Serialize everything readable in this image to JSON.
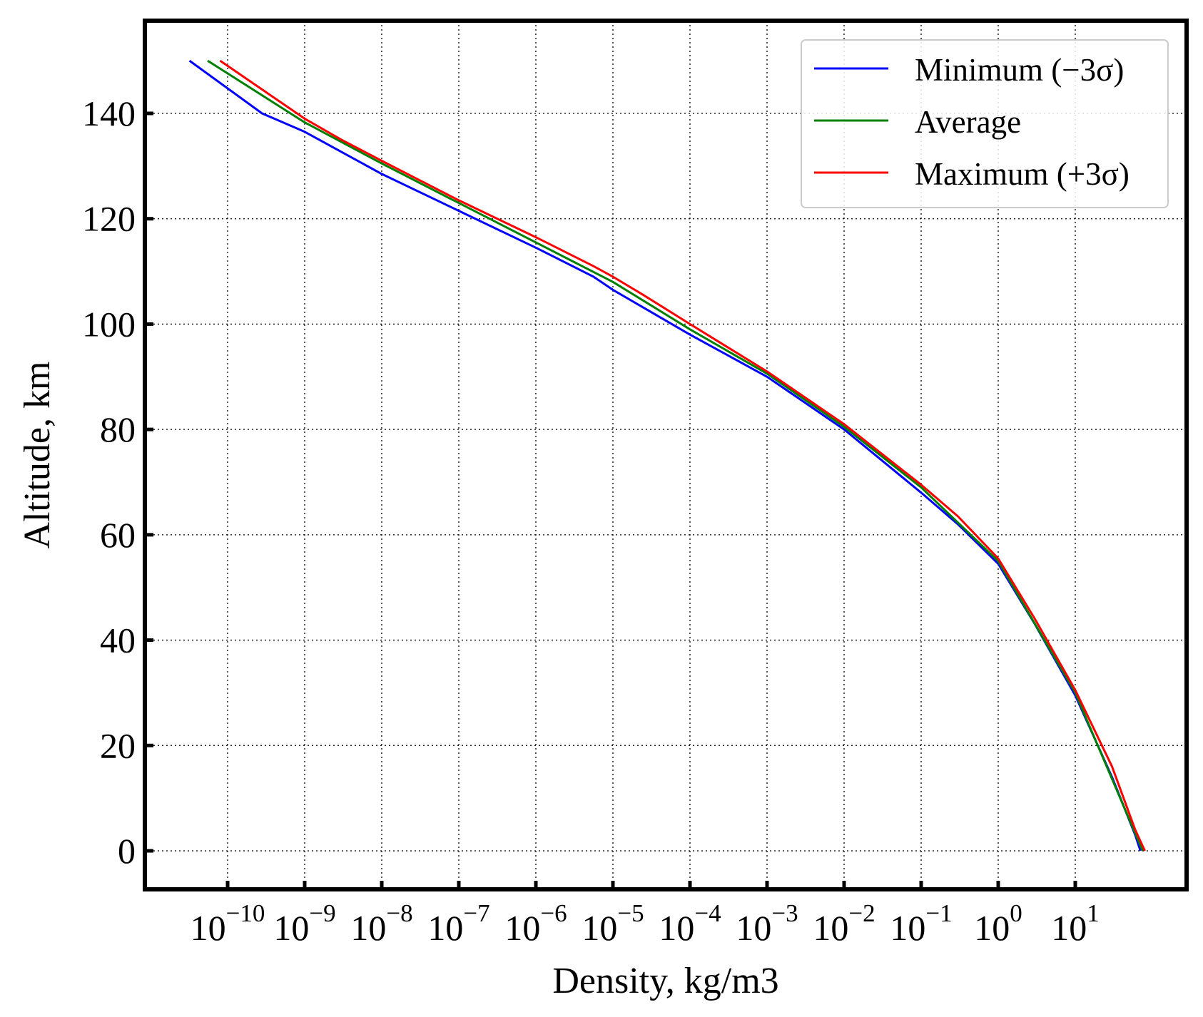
{
  "chart_data": {
    "type": "line",
    "title": "",
    "xlabel": "Density, kg/m3",
    "ylabel": "Altitude, km",
    "x_scale": "log",
    "xlim": [
      1e-11,
      1000.0
    ],
    "ylim": [
      -7,
      158
    ],
    "x_tick_labels": [
      {
        "base": "10",
        "exp": "−10"
      },
      {
        "base": "10",
        "exp": "−9"
      },
      {
        "base": "10",
        "exp": "−8"
      },
      {
        "base": "10",
        "exp": "−7"
      },
      {
        "base": "10",
        "exp": "−6"
      },
      {
        "base": "10",
        "exp": "−5"
      },
      {
        "base": "10",
        "exp": "−4"
      },
      {
        "base": "10",
        "exp": "−3"
      },
      {
        "base": "10",
        "exp": "−2"
      },
      {
        "base": "10",
        "exp": "−1"
      },
      {
        "base": "10",
        "exp": "0"
      },
      {
        "base": "10",
        "exp": "1"
      }
    ],
    "x_tick_values": [
      1e-10,
      1e-09,
      1e-08,
      1e-07,
      1e-06,
      1e-05,
      0.0001,
      0.001,
      0.01,
      0.1,
      1,
      10
    ],
    "y_ticks": [
      "0",
      "20",
      "40",
      "60",
      "80",
      "100",
      "120",
      "140"
    ],
    "y_tick_values": [
      0,
      20,
      40,
      60,
      80,
      100,
      120,
      140
    ],
    "grid": true,
    "legend_position": "top-right",
    "series": [
      {
        "name": "Minimum (−3σ)",
        "color": "#0000ff",
        "points": [
          [
            3.2e-11,
            150
          ],
          [
            2.8e-10,
            140
          ],
          [
            1e-09,
            136.5
          ],
          [
            1e-08,
            128.5
          ],
          [
            1e-07,
            121.5
          ],
          [
            1e-06,
            114.5
          ],
          [
            5.6e-06,
            109
          ],
          [
            1e-05,
            106.5
          ],
          [
            0.0001,
            98
          ],
          [
            0.001,
            90
          ],
          [
            0.01,
            80
          ],
          [
            0.1,
            68
          ],
          [
            0.3,
            62
          ],
          [
            1,
            54.5
          ],
          [
            3,
            43
          ],
          [
            10,
            29.5
          ],
          [
            30,
            14
          ],
          [
            60,
            3
          ],
          [
            70,
            0
          ]
        ]
      },
      {
        "name": "Average",
        "color": "#008000",
        "points": [
          [
            5.5e-11,
            150
          ],
          [
            1e-09,
            138.3
          ],
          [
            1e-08,
            130.5
          ],
          [
            1e-07,
            123
          ],
          [
            1e-06,
            115.5
          ],
          [
            1e-05,
            108
          ],
          [
            0.0001,
            99
          ],
          [
            0.001,
            90.6
          ],
          [
            0.01,
            80.5
          ],
          [
            0.1,
            69
          ],
          [
            1,
            55
          ],
          [
            10,
            30
          ],
          [
            75,
            0
          ]
        ]
      },
      {
        "name": "Maximum (+3σ)",
        "color": "#ff0000",
        "points": [
          [
            8e-11,
            150
          ],
          [
            1e-09,
            139
          ],
          [
            3e-09,
            135
          ],
          [
            1e-08,
            131
          ],
          [
            1e-07,
            123.5
          ],
          [
            1e-06,
            116.5
          ],
          [
            5.6e-06,
            111
          ],
          [
            1e-05,
            109
          ],
          [
            2.5e-05,
            105.5
          ],
          [
            0.0001,
            100
          ],
          [
            0.001,
            91
          ],
          [
            0.01,
            81
          ],
          [
            0.1,
            69.5
          ],
          [
            0.3,
            63.5
          ],
          [
            1,
            55.5
          ],
          [
            3,
            44
          ],
          [
            10,
            30.5
          ],
          [
            30,
            16
          ],
          [
            60,
            4
          ],
          [
            80,
            0
          ]
        ]
      }
    ]
  }
}
